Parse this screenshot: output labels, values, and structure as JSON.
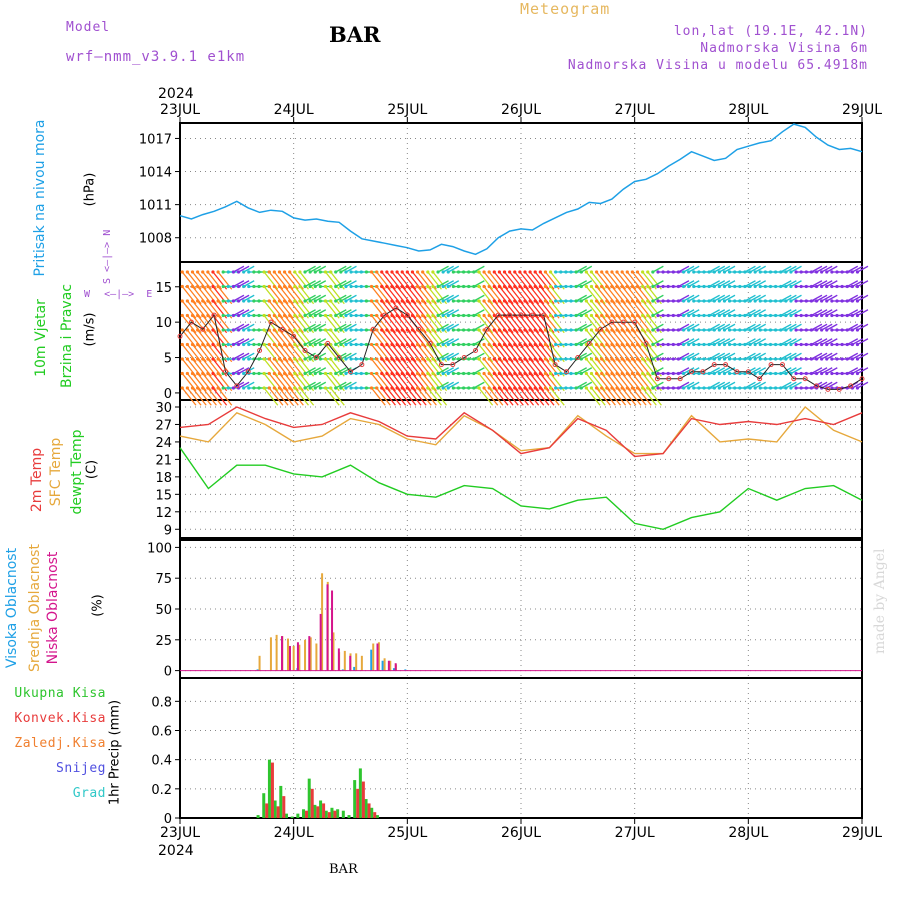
{
  "header": {
    "model_label": "Model",
    "model_name": "wrf–nmm_v3.9.1  e1km",
    "station": "BAR",
    "title": "Meteogram",
    "lonlat": "lon,lat (19.1E, 42.1N)",
    "elevation": "Nadmorska Visina 6m",
    "model_elevation": "Nadmorska Visina u modelu 65.4918m",
    "station_bottom": "BAR",
    "watermark": "made by Angel"
  },
  "colors": {
    "pressure": "#1ea0e6",
    "temp2m": "#e83c3c",
    "sfc": "#e6a83c",
    "dewpt": "#22cc22",
    "high_cloud": "#1ea0e6",
    "mid_cloud": "#e6a83c",
    "low_cloud": "#d4148c",
    "precip_total": "#2ec52e",
    "precip_conv": "#e83c3c",
    "precip_frz": "#f08030",
    "snow": "#5050e0",
    "hail": "#30c8c8",
    "purple": "#a050d0"
  },
  "chart_data": [
    {
      "type": "line",
      "panel": "pressure",
      "ylabel_left": "Pritisak na nivou mora",
      "unit": "(hPa)",
      "x_start_label": "2024",
      "x_end_label": "2024",
      "x_ticks": [
        "23JUL",
        "24JUL",
        "25JUL",
        "26JUL",
        "27JUL",
        "28JUL",
        "29JUL"
      ],
      "ylim": [
        1005.8,
        1018.4
      ],
      "y_ticks": [
        1008,
        1011,
        1014,
        1017
      ],
      "grid": true,
      "series": [
        {
          "name": "Pritisak na nivou mora",
          "x_days": [
            0.0,
            0.1,
            0.2,
            0.3,
            0.4,
            0.5,
            0.6,
            0.7,
            0.8,
            0.9,
            1.0,
            1.1,
            1.2,
            1.3,
            1.4,
            1.5,
            1.6,
            1.7,
            1.8,
            1.9,
            2.0,
            2.1,
            2.2,
            2.3,
            2.4,
            2.5,
            2.6,
            2.7,
            2.8,
            2.9,
            3.0,
            3.1,
            3.2,
            3.3,
            3.4,
            3.5,
            3.6,
            3.7,
            3.8,
            3.9,
            4.0,
            4.1,
            4.2,
            4.3,
            4.4,
            4.5,
            4.6,
            4.7,
            4.8,
            4.9,
            5.0,
            5.1,
            5.2,
            5.3,
            5.4,
            5.5,
            5.6,
            5.7,
            5.8,
            5.9,
            6.0
          ],
          "values": [
            1010.0,
            1009.7,
            1010.1,
            1010.4,
            1010.8,
            1011.3,
            1010.7,
            1010.3,
            1010.5,
            1010.4,
            1009.8,
            1009.6,
            1009.7,
            1009.5,
            1009.4,
            1008.6,
            1007.9,
            1007.7,
            1007.5,
            1007.3,
            1007.1,
            1006.8,
            1006.9,
            1007.4,
            1007.2,
            1006.8,
            1006.5,
            1007.0,
            1008.0,
            1008.6,
            1008.8,
            1008.7,
            1009.3,
            1009.8,
            1010.3,
            1010.6,
            1011.2,
            1011.1,
            1011.5,
            1012.4,
            1013.1,
            1013.3,
            1013.8,
            1014.5,
            1015.1,
            1015.8,
            1015.4,
            1015.0,
            1015.2,
            1016.0,
            1016.3,
            1016.6,
            1016.8,
            1017.6,
            1018.3,
            1018.0,
            1017.1,
            1016.4,
            1016.0,
            1016.1,
            1015.8
          ]
        }
      ]
    },
    {
      "type": "line",
      "panel": "wind",
      "ylabel_left": [
        "10m Vjetar",
        "Brzina i Pravac"
      ],
      "unit": "(m/s)",
      "compass": {
        "n": "N",
        "s": "S",
        "e": "E",
        "w": "W",
        "arrow": "<–|–>"
      },
      "ylim": [
        -1,
        18.5
      ],
      "y_ticks": [
        0,
        5,
        10,
        15
      ],
      "grid": true,
      "series": [
        {
          "name": "Brzina",
          "x_days": [
            0.0,
            0.1,
            0.2,
            0.3,
            0.4,
            0.5,
            0.6,
            0.7,
            0.8,
            0.9,
            1.0,
            1.1,
            1.2,
            1.3,
            1.4,
            1.5,
            1.6,
            1.7,
            1.8,
            1.9,
            2.0,
            2.1,
            2.2,
            2.3,
            2.4,
            2.5,
            2.6,
            2.7,
            2.8,
            2.9,
            3.0,
            3.1,
            3.2,
            3.3,
            3.4,
            3.5,
            3.6,
            3.7,
            3.8,
            3.9,
            4.0,
            4.1,
            4.2,
            4.3,
            4.4,
            4.5,
            4.6,
            4.7,
            4.8,
            4.9,
            5.0,
            5.1,
            5.2,
            5.3,
            5.4,
            5.5,
            5.6,
            5.7,
            5.8,
            5.9,
            6.0
          ],
          "values": [
            8,
            10,
            9,
            11,
            3,
            1,
            3,
            6,
            10,
            9,
            8,
            6,
            5,
            7,
            5,
            3,
            4,
            9,
            11,
            12,
            11,
            9,
            7,
            4,
            4,
            5,
            6,
            9,
            11,
            11,
            11,
            11,
            11,
            4,
            3,
            5,
            7,
            9,
            10,
            10,
            10,
            7,
            2,
            2,
            2,
            3,
            3,
            4,
            4,
            3,
            3,
            2,
            4,
            4,
            2,
            2,
            1,
            0.5,
            0.5,
            1,
            2
          ]
        }
      ]
    },
    {
      "type": "line",
      "panel": "temperature",
      "ylabel_left": [
        "2m Temp",
        "SFC Temp",
        "dewpt Temp"
      ],
      "unit": "(C)",
      "ylim": [
        7.5,
        31.2
      ],
      "y_ticks": [
        9,
        12,
        15,
        18,
        21,
        24,
        27,
        30
      ],
      "grid": true,
      "series": [
        {
          "name": "2m Temp",
          "x_days": [
            0.0,
            0.25,
            0.5,
            0.75,
            1.0,
            1.25,
            1.5,
            1.75,
            2.0,
            2.25,
            2.5,
            2.75,
            3.0,
            3.25,
            3.5,
            3.75,
            4.0,
            4.25,
            4.5,
            4.75,
            5.0,
            5.25,
            5.5,
            5.75,
            6.0
          ],
          "values": [
            26.5,
            27,
            30,
            28,
            26.5,
            27,
            29,
            27.5,
            25,
            24.5,
            29,
            26,
            22,
            23,
            28,
            26,
            21.5,
            22,
            28,
            27,
            27.5,
            27,
            28,
            27,
            29
          ]
        },
        {
          "name": "SFC Temp",
          "x_days": [
            0.0,
            0.25,
            0.5,
            0.75,
            1.0,
            1.25,
            1.5,
            1.75,
            2.0,
            2.25,
            2.5,
            2.75,
            3.0,
            3.25,
            3.5,
            3.75,
            4.0,
            4.25,
            4.5,
            4.75,
            5.0,
            5.25,
            5.5,
            5.75,
            6.0
          ],
          "values": [
            25,
            24,
            29,
            27,
            24,
            25,
            28,
            27,
            24.5,
            23.5,
            28.5,
            26,
            22.5,
            23,
            28.5,
            25,
            22,
            22,
            28.5,
            24,
            24.5,
            24,
            30,
            26,
            24
          ]
        },
        {
          "name": "dewpt Temp",
          "x_days": [
            0.0,
            0.25,
            0.5,
            0.75,
            1.0,
            1.25,
            1.5,
            1.75,
            2.0,
            2.25,
            2.5,
            2.75,
            3.0,
            3.25,
            3.5,
            3.75,
            4.0,
            4.25,
            4.5,
            4.75,
            5.0,
            5.25,
            5.5,
            5.75,
            6.0
          ],
          "values": [
            23,
            16,
            20,
            20,
            18.5,
            18,
            20,
            17,
            15,
            14.5,
            16.5,
            16,
            13,
            12.5,
            14,
            14.5,
            10,
            9,
            11,
            12,
            16,
            14,
            16,
            16.5,
            14
          ]
        }
      ]
    },
    {
      "type": "bar",
      "panel": "cloud",
      "ylabel_left": [
        "Visoka Oblacnost",
        "Srednja Oblacnost",
        "Niska Oblacnost"
      ],
      "unit": "(%)",
      "ylim": [
        -6,
        106
      ],
      "y_ticks": [
        0,
        25,
        50,
        75,
        100
      ],
      "grid": true,
      "series": [
        {
          "name": "Visoka Oblacnost",
          "x_days": [
            0.7,
            1.05,
            1.45,
            1.55,
            1.7,
            1.8,
            1.9,
            2.0
          ],
          "values": [
            1,
            2,
            1,
            3,
            17,
            8,
            2,
            1
          ]
        },
        {
          "name": "Srednja Oblacnost",
          "x_days": [
            0.7,
            0.8,
            0.85,
            0.9,
            0.95,
            1.0,
            1.05,
            1.1,
            1.15,
            1.2,
            1.25,
            1.3,
            1.35,
            1.4,
            1.45,
            1.5,
            1.55,
            1.6,
            1.7,
            1.75,
            1.8,
            1.85,
            1.9
          ],
          "values": [
            12,
            27,
            29,
            28,
            26,
            20,
            21,
            25,
            27,
            22,
            79,
            72,
            31,
            15,
            16,
            14,
            14,
            12,
            22,
            23,
            10,
            8,
            5
          ]
        },
        {
          "name": "Niska Oblacnost",
          "x_days": [
            0.88,
            0.95,
            1.02,
            1.12,
            1.22,
            1.28,
            1.32,
            1.38,
            1.48,
            1.72,
            1.82,
            1.88
          ],
          "values": [
            28,
            20,
            23,
            28,
            46,
            70,
            65,
            18,
            12,
            22,
            8,
            6
          ]
        }
      ]
    },
    {
      "type": "bar",
      "panel": "precip",
      "ylabel_left": [
        "Ukupna Kisa",
        "Konvek.Kisa",
        "Zaledj.Kisa",
        "Snijeg",
        "Grad"
      ],
      "unit": "1hr Precip (mm)",
      "ylim": [
        0,
        0.96
      ],
      "y_ticks": [
        0,
        0.2,
        0.4,
        0.6,
        0.8
      ],
      "grid": true,
      "series": [
        {
          "name": "Ukupna Kisa",
          "x_days": [
            0.7,
            0.75,
            0.8,
            0.85,
            0.9,
            0.95,
            1.0,
            1.05,
            1.1,
            1.15,
            1.2,
            1.25,
            1.3,
            1.35,
            1.4,
            1.45,
            1.5,
            1.55,
            1.6,
            1.65,
            1.7,
            1.75
          ],
          "values": [
            0.02,
            0.17,
            0.4,
            0.12,
            0.22,
            0.03,
            0.01,
            0.03,
            0.06,
            0.27,
            0.09,
            0.12,
            0.05,
            0.07,
            0.06,
            0.05,
            0.02,
            0.26,
            0.34,
            0.13,
            0.07,
            0.02
          ]
        },
        {
          "name": "Konvek.Kisa",
          "x_days": [
            0.75,
            0.8,
            0.85,
            0.9,
            1.1,
            1.15,
            1.2,
            1.25,
            1.3,
            1.35,
            1.55,
            1.6,
            1.65,
            1.7
          ],
          "values": [
            0.1,
            0.38,
            0.08,
            0.15,
            0.05,
            0.2,
            0.08,
            0.1,
            0.04,
            0.05,
            0.2,
            0.25,
            0.1,
            0.04
          ]
        }
      ]
    }
  ]
}
